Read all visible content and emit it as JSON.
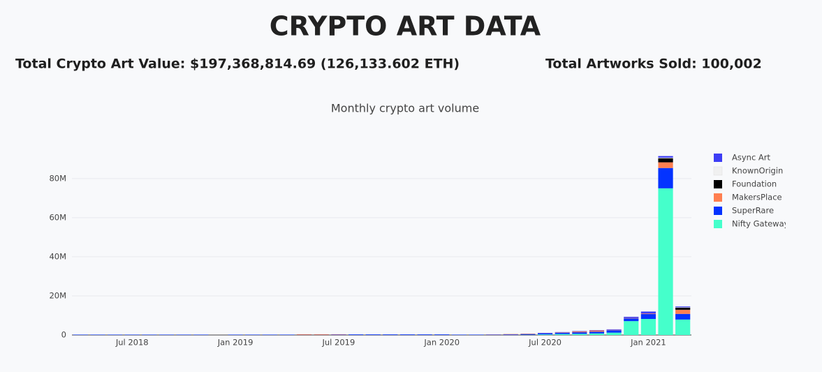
{
  "header": {
    "title": "CRYPTO ART DATA",
    "stats": [
      "Total Crypto Art Value: $197,368,814.69 (126,133.602 ETH)",
      "Total Artworks Sold: 100,002"
    ]
  },
  "chart_data": {
    "type": "bar",
    "stacked": true,
    "title": "Monthly crypto art volume",
    "x": [
      "2018-04",
      "2018-05",
      "2018-06",
      "2018-07",
      "2018-08",
      "2018-09",
      "2018-10",
      "2018-11",
      "2018-12",
      "2019-01",
      "2019-02",
      "2019-03",
      "2019-04",
      "2019-05",
      "2019-06",
      "2019-07",
      "2019-08",
      "2019-09",
      "2019-10",
      "2019-11",
      "2019-12",
      "2020-01",
      "2020-02",
      "2020-03",
      "2020-04",
      "2020-05",
      "2020-06",
      "2020-07",
      "2020-08",
      "2020-09",
      "2020-10",
      "2020-11",
      "2020-12",
      "2021-01",
      "2021-02",
      "2021-03"
    ],
    "xticks": [
      {
        "value": "2018-07",
        "label": "Jul 2018"
      },
      {
        "value": "2019-01",
        "label": "Jan 2019"
      },
      {
        "value": "2019-07",
        "label": "Jul 2019"
      },
      {
        "value": "2020-01",
        "label": "Jan 2020"
      },
      {
        "value": "2020-07",
        "label": "Jul 2020"
      },
      {
        "value": "2021-01",
        "label": "Jan 2021"
      }
    ],
    "ylim": [
      0,
      96000000
    ],
    "yticks": [
      0,
      {
        "value": 20000000,
        "label": "20M"
      },
      {
        "value": 40000000,
        "label": "40M"
      },
      {
        "value": 60000000,
        "label": "60M"
      },
      {
        "value": 80000000,
        "label": "80M"
      }
    ],
    "grid": true,
    "legend": "right",
    "series": [
      {
        "name": "Nifty Gateway",
        "color": "#45ffcb",
        "values": [
          0,
          0,
          0,
          0,
          0,
          0,
          0,
          0,
          0,
          0,
          0,
          0,
          0,
          0,
          0,
          0,
          0,
          0,
          0,
          0,
          0,
          0,
          0,
          0,
          0,
          0,
          100000,
          300000,
          500000,
          600000,
          800000,
          1200000,
          7100000,
          8200000,
          75000000,
          7900000
        ]
      },
      {
        "name": "SuperRare",
        "color": "#0433ff",
        "values": [
          200000,
          200000,
          200000,
          200000,
          200000,
          200000,
          200000,
          200000,
          0,
          200000,
          200000,
          200000,
          200000,
          100000,
          100000,
          200000,
          300000,
          300000,
          300000,
          300000,
          300000,
          300000,
          200000,
          200000,
          200000,
          300000,
          400000,
          600000,
          700000,
          800000,
          900000,
          1200000,
          1400000,
          2500000,
          10400000,
          2900000
        ]
      },
      {
        "name": "MakersPlace",
        "color": "#ff7f50",
        "values": [
          0,
          0,
          0,
          0,
          0,
          0,
          0,
          0,
          0,
          0,
          0,
          0,
          0,
          300000,
          300000,
          200000,
          0,
          0,
          0,
          0,
          0,
          0,
          0,
          0,
          100000,
          200000,
          200000,
          100000,
          200000,
          400000,
          600000,
          200000,
          200000,
          300000,
          2900000,
          2100000
        ]
      },
      {
        "name": "Foundation",
        "color": "#000000",
        "values": [
          0,
          0,
          0,
          0,
          0,
          0,
          0,
          0,
          0,
          0,
          0,
          0,
          0,
          0,
          0,
          0,
          0,
          0,
          0,
          0,
          0,
          0,
          0,
          0,
          0,
          0,
          0,
          0,
          0,
          0,
          0,
          0,
          0,
          0,
          2100000,
          1100000
        ]
      },
      {
        "name": "KnownOrigin",
        "color": "#f0f0f0",
        "values": [
          0,
          0,
          0,
          0,
          0,
          0,
          0,
          0,
          0,
          0,
          0,
          0,
          0,
          0,
          0,
          0,
          0,
          0,
          0,
          0,
          0,
          0,
          0,
          0,
          0,
          0,
          0,
          0,
          0,
          0,
          0,
          0,
          0,
          0,
          300000,
          200000
        ]
      },
      {
        "name": "Async Art",
        "color": "#3d3df5",
        "values": [
          0,
          0,
          0,
          0,
          0,
          0,
          0,
          0,
          0,
          0,
          0,
          0,
          0,
          0,
          0,
          0,
          0,
          0,
          0,
          0,
          0,
          0,
          0,
          0,
          0,
          0,
          0,
          100000,
          100000,
          200000,
          200000,
          300000,
          600000,
          1000000,
          800000,
          400000
        ]
      }
    ]
  }
}
